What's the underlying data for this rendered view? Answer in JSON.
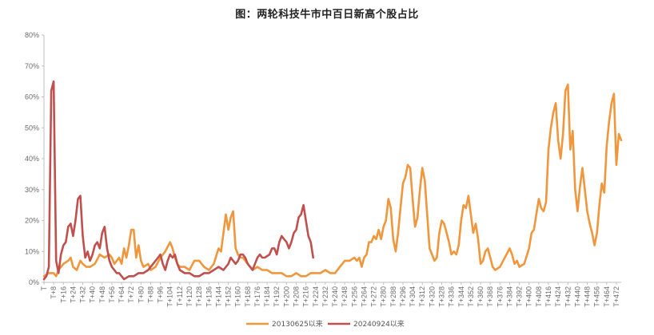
{
  "chart_data": {
    "type": "line",
    "title": "图：两轮科技牛市中百日新高个股占比",
    "xlabel": "",
    "ylabel": "",
    "ylim": [
      0,
      80
    ],
    "y_ticks": [
      "0%",
      "10%",
      "20%",
      "30%",
      "40%",
      "50%",
      "60%",
      "70%",
      "80%"
    ],
    "x_ticks": [
      "T",
      "T+8",
      "T+16",
      "T+24",
      "T+32",
      "T+40",
      "T+48",
      "T+56",
      "T+64",
      "T+72",
      "T+80",
      "T+88",
      "T+96",
      "T+104",
      "T+112",
      "T+120",
      "T+128",
      "T+136",
      "T+144",
      "T+152",
      "T+160",
      "T+168",
      "T+176",
      "T+184",
      "T+192",
      "T+200",
      "T+208",
      "T+216",
      "T+224",
      "T+232",
      "T+240",
      "T+248",
      "T+256",
      "T+264",
      "T+272",
      "T+280",
      "T+288",
      "T+296",
      "T+304",
      "T+312",
      "T+320",
      "T+328",
      "T+336",
      "T+344",
      "T+352",
      "T+360",
      "T+368",
      "T+376",
      "T+384",
      "T+392",
      "T+400",
      "T+408",
      "T+416",
      "T+424",
      "T+432",
      "T+440",
      "T+448",
      "T+456",
      "T+464",
      "T+472"
    ],
    "x_max": 476,
    "grid": false,
    "legend_position": "bottom",
    "series": [
      {
        "name": "20130625以来",
        "color": "#F0963C",
        "points": [
          [
            0,
            2
          ],
          [
            4,
            3
          ],
          [
            8,
            3
          ],
          [
            10,
            2
          ],
          [
            12,
            4
          ],
          [
            16,
            6
          ],
          [
            20,
            7
          ],
          [
            22,
            8
          ],
          [
            24,
            5
          ],
          [
            27,
            4
          ],
          [
            30,
            7
          ],
          [
            32,
            6
          ],
          [
            35,
            5
          ],
          [
            38,
            5
          ],
          [
            42,
            6
          ],
          [
            46,
            9
          ],
          [
            50,
            8
          ],
          [
            54,
            9
          ],
          [
            56,
            8
          ],
          [
            58,
            6
          ],
          [
            60,
            7
          ],
          [
            62,
            8
          ],
          [
            64,
            6
          ],
          [
            66,
            11
          ],
          [
            68,
            8
          ],
          [
            70,
            12
          ],
          [
            72,
            17
          ],
          [
            74,
            17
          ],
          [
            76,
            8
          ],
          [
            78,
            12
          ],
          [
            80,
            7
          ],
          [
            82,
            5
          ],
          [
            86,
            6
          ],
          [
            88,
            4
          ],
          [
            92,
            5
          ],
          [
            96,
            8
          ],
          [
            100,
            10
          ],
          [
            104,
            13
          ],
          [
            106,
            11
          ],
          [
            108,
            8
          ],
          [
            110,
            6
          ],
          [
            112,
            5
          ],
          [
            116,
            5
          ],
          [
            120,
            4
          ],
          [
            124,
            7
          ],
          [
            128,
            7
          ],
          [
            130,
            6
          ],
          [
            132,
            5
          ],
          [
            136,
            4
          ],
          [
            140,
            6
          ],
          [
            144,
            11
          ],
          [
            146,
            10
          ],
          [
            148,
            16
          ],
          [
            150,
            22
          ],
          [
            152,
            17
          ],
          [
            154,
            21
          ],
          [
            156,
            23
          ],
          [
            158,
            11
          ],
          [
            160,
            9
          ],
          [
            162,
            8
          ],
          [
            164,
            8
          ],
          [
            168,
            6
          ],
          [
            172,
            4
          ],
          [
            176,
            5
          ],
          [
            180,
            4
          ],
          [
            184,
            4
          ],
          [
            188,
            3
          ],
          [
            192,
            3
          ],
          [
            196,
            3
          ],
          [
            200,
            2
          ],
          [
            204,
            2
          ],
          [
            208,
            3
          ],
          [
            212,
            2
          ],
          [
            216,
            2
          ],
          [
            220,
            3
          ],
          [
            224,
            3
          ],
          [
            228,
            3
          ],
          [
            232,
            4
          ],
          [
            236,
            3
          ],
          [
            240,
            3
          ],
          [
            244,
            5
          ],
          [
            248,
            7
          ],
          [
            252,
            7
          ],
          [
            256,
            8
          ],
          [
            258,
            7
          ],
          [
            260,
            8
          ],
          [
            262,
            5
          ],
          [
            264,
            8
          ],
          [
            266,
            9
          ],
          [
            268,
            13
          ],
          [
            270,
            13
          ],
          [
            272,
            15
          ],
          [
            274,
            14
          ],
          [
            276,
            17
          ],
          [
            278,
            14
          ],
          [
            280,
            18
          ],
          [
            282,
            20
          ],
          [
            284,
            27
          ],
          [
            286,
            24
          ],
          [
            288,
            14
          ],
          [
            290,
            10
          ],
          [
            292,
            16
          ],
          [
            294,
            24
          ],
          [
            296,
            32
          ],
          [
            298,
            34
          ],
          [
            300,
            38
          ],
          [
            302,
            37
          ],
          [
            304,
            27
          ],
          [
            306,
            18
          ],
          [
            308,
            21
          ],
          [
            310,
            30
          ],
          [
            312,
            37
          ],
          [
            314,
            33
          ],
          [
            316,
            22
          ],
          [
            318,
            11
          ],
          [
            320,
            9
          ],
          [
            322,
            7
          ],
          [
            324,
            8
          ],
          [
            326,
            16
          ],
          [
            328,
            20
          ],
          [
            330,
            19
          ],
          [
            332,
            16
          ],
          [
            334,
            13
          ],
          [
            336,
            9
          ],
          [
            338,
            10
          ],
          [
            340,
            9
          ],
          [
            342,
            12
          ],
          [
            344,
            20
          ],
          [
            346,
            25
          ],
          [
            348,
            24
          ],
          [
            350,
            28
          ],
          [
            352,
            22
          ],
          [
            354,
            16
          ],
          [
            356,
            19
          ],
          [
            358,
            14
          ],
          [
            360,
            6
          ],
          [
            362,
            7
          ],
          [
            364,
            10
          ],
          [
            366,
            11
          ],
          [
            368,
            8
          ],
          [
            370,
            5
          ],
          [
            372,
            4
          ],
          [
            376,
            5
          ],
          [
            380,
            8
          ],
          [
            384,
            11
          ],
          [
            386,
            9
          ],
          [
            388,
            6
          ],
          [
            390,
            7
          ],
          [
            392,
            5
          ],
          [
            396,
            6
          ],
          [
            400,
            11
          ],
          [
            402,
            16
          ],
          [
            404,
            17
          ],
          [
            406,
            22
          ],
          [
            408,
            27
          ],
          [
            410,
            24
          ],
          [
            412,
            23
          ],
          [
            414,
            26
          ],
          [
            416,
            43
          ],
          [
            418,
            50
          ],
          [
            420,
            55
          ],
          [
            422,
            58
          ],
          [
            424,
            46
          ],
          [
            426,
            40
          ],
          [
            428,
            48
          ],
          [
            430,
            62
          ],
          [
            432,
            64
          ],
          [
            434,
            43
          ],
          [
            436,
            49
          ],
          [
            438,
            30
          ],
          [
            440,
            23
          ],
          [
            442,
            31
          ],
          [
            444,
            37
          ],
          [
            446,
            30
          ],
          [
            448,
            23
          ],
          [
            450,
            19
          ],
          [
            452,
            16
          ],
          [
            454,
            12
          ],
          [
            456,
            16
          ],
          [
            458,
            25
          ],
          [
            460,
            32
          ],
          [
            462,
            29
          ],
          [
            464,
            44
          ],
          [
            466,
            52
          ],
          [
            468,
            58
          ],
          [
            470,
            61
          ],
          [
            472,
            38
          ],
          [
            474,
            48
          ],
          [
            476,
            46
          ]
        ]
      },
      {
        "name": "20240924以来",
        "color": "#C0504D",
        "points": [
          [
            0,
            1
          ],
          [
            2,
            2
          ],
          [
            4,
            5
          ],
          [
            6,
            62
          ],
          [
            8,
            65
          ],
          [
            10,
            7
          ],
          [
            12,
            3
          ],
          [
            14,
            9
          ],
          [
            16,
            12
          ],
          [
            18,
            13
          ],
          [
            20,
            18
          ],
          [
            22,
            19
          ],
          [
            24,
            15
          ],
          [
            26,
            20
          ],
          [
            28,
            27
          ],
          [
            30,
            28
          ],
          [
            32,
            15
          ],
          [
            34,
            8
          ],
          [
            36,
            10
          ],
          [
            38,
            7
          ],
          [
            40,
            9
          ],
          [
            42,
            12
          ],
          [
            44,
            13
          ],
          [
            46,
            11
          ],
          [
            48,
            16
          ],
          [
            50,
            18
          ],
          [
            52,
            11
          ],
          [
            54,
            7
          ],
          [
            56,
            5
          ],
          [
            58,
            4
          ],
          [
            60,
            3
          ],
          [
            62,
            3
          ],
          [
            64,
            2
          ],
          [
            66,
            1
          ],
          [
            70,
            2
          ],
          [
            74,
            2
          ],
          [
            78,
            3
          ],
          [
            82,
            3
          ],
          [
            86,
            4
          ],
          [
            90,
            6
          ],
          [
            94,
            8
          ],
          [
            96,
            9
          ],
          [
            98,
            6
          ],
          [
            100,
            4
          ],
          [
            102,
            7
          ],
          [
            104,
            9
          ],
          [
            106,
            8
          ],
          [
            108,
            9
          ],
          [
            110,
            6
          ],
          [
            112,
            4
          ],
          [
            116,
            3
          ],
          [
            120,
            3
          ],
          [
            124,
            2
          ],
          [
            128,
            2
          ],
          [
            132,
            3
          ],
          [
            136,
            3
          ],
          [
            140,
            4
          ],
          [
            144,
            5
          ],
          [
            148,
            4
          ],
          [
            152,
            6
          ],
          [
            154,
            8
          ],
          [
            156,
            7
          ],
          [
            158,
            6
          ],
          [
            160,
            7
          ],
          [
            162,
            9
          ],
          [
            164,
            9
          ],
          [
            166,
            8
          ],
          [
            168,
            6
          ],
          [
            170,
            5
          ],
          [
            172,
            4
          ],
          [
            174,
            6
          ],
          [
            176,
            8
          ],
          [
            178,
            9
          ],
          [
            180,
            8
          ],
          [
            182,
            8
          ],
          [
            186,
            9
          ],
          [
            188,
            11
          ],
          [
            190,
            11
          ],
          [
            192,
            9
          ],
          [
            194,
            13
          ],
          [
            196,
            15
          ],
          [
            198,
            14
          ],
          [
            200,
            13
          ],
          [
            202,
            11
          ],
          [
            204,
            13
          ],
          [
            206,
            16
          ],
          [
            208,
            17
          ],
          [
            210,
            21
          ],
          [
            212,
            22
          ],
          [
            214,
            25
          ],
          [
            216,
            20
          ],
          [
            218,
            15
          ],
          [
            220,
            13
          ],
          [
            222,
            8
          ]
        ]
      }
    ]
  }
}
